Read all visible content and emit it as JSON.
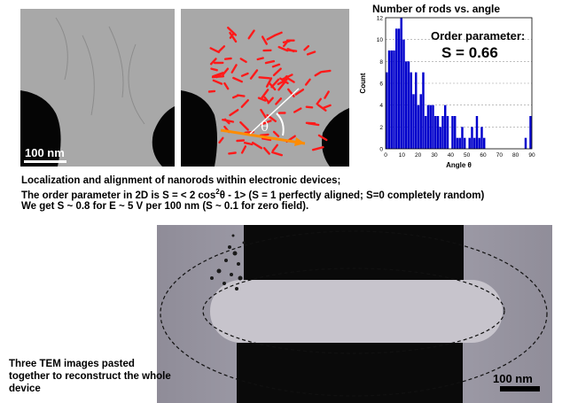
{
  "panel_a": {
    "scale_label": "100 nm"
  },
  "panel_b": {
    "theta_symbol": "θ"
  },
  "histogram": {
    "title": "Number of rods vs. angle",
    "annotation_label": "Order parameter:",
    "annotation_value": "S = 0.66",
    "colors": {
      "bar": "#0000cc",
      "grid": "#999999"
    }
  },
  "caption": {
    "line1": "Localization and alignment of nanorods within electronic devices;",
    "line2_prefix": "The order parameter in 2D is S = < 2 cos",
    "line2_sup": "2",
    "line2_suffix": "θ - 1> (S = 1 perfectly aligned; S=0 completely random)",
    "line3": "We get S ~ 0.8 for E ~ 5 V per 100 nm  (S ~ 0.1 for zero field)."
  },
  "device": {
    "scale_label": "100 nm",
    "note_line1": "Three TEM images pasted",
    "note_line2": "together to reconstruct the whole",
    "note_line3": "device"
  },
  "chart_data": {
    "type": "bar",
    "title": "Number of rods vs. angle",
    "xlabel": "Angle θ",
    "ylabel": "Count",
    "xlim": [
      0,
      90
    ],
    "ylim": [
      0,
      12
    ],
    "xticks": [
      0,
      10,
      20,
      30,
      40,
      50,
      60,
      70,
      80,
      90
    ],
    "yticks": [
      0,
      2,
      4,
      6,
      8,
      10,
      12
    ],
    "grid": true,
    "bin_width": 1.5,
    "x": [
      0.75,
      2.25,
      3.75,
      5.25,
      6.75,
      8.25,
      9.75,
      11.25,
      12.75,
      14.25,
      15.75,
      17.25,
      18.75,
      20.25,
      21.75,
      23.25,
      24.75,
      26.25,
      27.75,
      29.25,
      30.75,
      32.25,
      33.75,
      35.25,
      36.75,
      38.25,
      39.75,
      41.25,
      42.75,
      44.25,
      45.75,
      47.25,
      48.75,
      50.25,
      51.75,
      53.25,
      54.75,
      56.25,
      57.75,
      59.25,
      60.75,
      62.25,
      63.75,
      65.25,
      66.75,
      68.25,
      69.75,
      71.25,
      72.75,
      74.25,
      75.75,
      77.25,
      78.75,
      80.25,
      81.75,
      83.25,
      84.75,
      86.25,
      87.75,
      89.25
    ],
    "values": [
      7,
      9,
      9,
      9,
      11,
      11,
      12,
      10,
      8,
      8,
      7,
      5,
      7,
      4,
      5,
      7,
      3,
      4,
      4,
      4,
      3,
      3,
      2,
      3,
      4,
      3,
      0,
      3,
      3,
      1,
      1,
      2,
      1,
      0,
      1,
      2,
      1,
      3,
      1,
      2,
      1,
      0,
      0,
      0,
      0,
      0,
      0,
      0,
      0,
      0,
      0,
      0,
      0,
      0,
      0,
      0,
      0,
      1,
      0,
      3
    ]
  }
}
